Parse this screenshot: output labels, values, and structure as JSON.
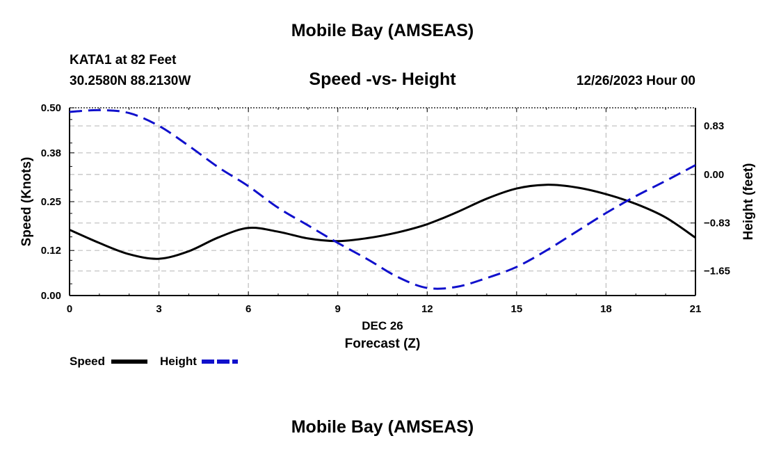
{
  "header": {
    "title": "Mobile Bay (AMSEAS)",
    "station": "KATA1 at 82 Feet",
    "coords": "30.2580N  88.2130W",
    "datetime": "12/26/2023 Hour 00"
  },
  "footer": {
    "title": "Mobile Bay (AMSEAS)"
  },
  "chart_data": {
    "type": "line",
    "title": "Speed -vs- Height",
    "xlabel": "Forecast (Z)",
    "date_label": "DEC 26",
    "ylabel": "Speed (Knots)",
    "y2label": "Height (feet)",
    "xlim": [
      0,
      21
    ],
    "ylim": [
      0,
      0.5
    ],
    "y2lim": [
      -2.07,
      1.14
    ],
    "x_ticks": [
      "0",
      "3",
      "6",
      "9",
      "12",
      "15",
      "18",
      "21"
    ],
    "y_ticks": [
      "0.00",
      "0.12",
      "0.25",
      "0.38",
      "0.50"
    ],
    "y2_ticks": [
      "0.83",
      "0.00",
      "−0.83",
      "−1.65"
    ],
    "y2_tick_values": [
      0.83,
      0,
      -0.83,
      -1.65
    ],
    "grid": true,
    "legend": {
      "position": "bottom-left",
      "entries": [
        "Speed",
        "Height"
      ]
    },
    "series": [
      {
        "name": "Speed",
        "axis": "left",
        "color": "#000000",
        "style": "solid",
        "x": [
          0,
          1,
          2,
          3,
          4,
          5,
          6,
          7,
          8,
          9,
          10,
          11,
          12,
          13,
          14,
          15,
          16,
          17,
          18,
          19,
          20,
          21
        ],
        "values": [
          0.175,
          0.14,
          0.11,
          0.098,
          0.118,
          0.155,
          0.18,
          0.17,
          0.152,
          0.145,
          0.153,
          0.168,
          0.19,
          0.222,
          0.258,
          0.285,
          0.295,
          0.288,
          0.27,
          0.244,
          0.208,
          0.154
        ]
      },
      {
        "name": "Height",
        "axis": "right",
        "color": "#1010cc",
        "style": "dashed",
        "x": [
          0,
          1,
          2,
          3,
          4,
          5,
          6,
          7,
          8,
          9,
          10,
          11,
          12,
          13,
          14,
          15,
          16,
          17,
          18,
          19,
          20,
          21
        ],
        "values": [
          1.07,
          1.1,
          1.05,
          0.83,
          0.49,
          0.12,
          -0.2,
          -0.57,
          -0.87,
          -1.17,
          -1.45,
          -1.75,
          -1.94,
          -1.92,
          -1.77,
          -1.58,
          -1.3,
          -0.98,
          -0.66,
          -0.37,
          -0.11,
          0.16
        ]
      }
    ]
  }
}
